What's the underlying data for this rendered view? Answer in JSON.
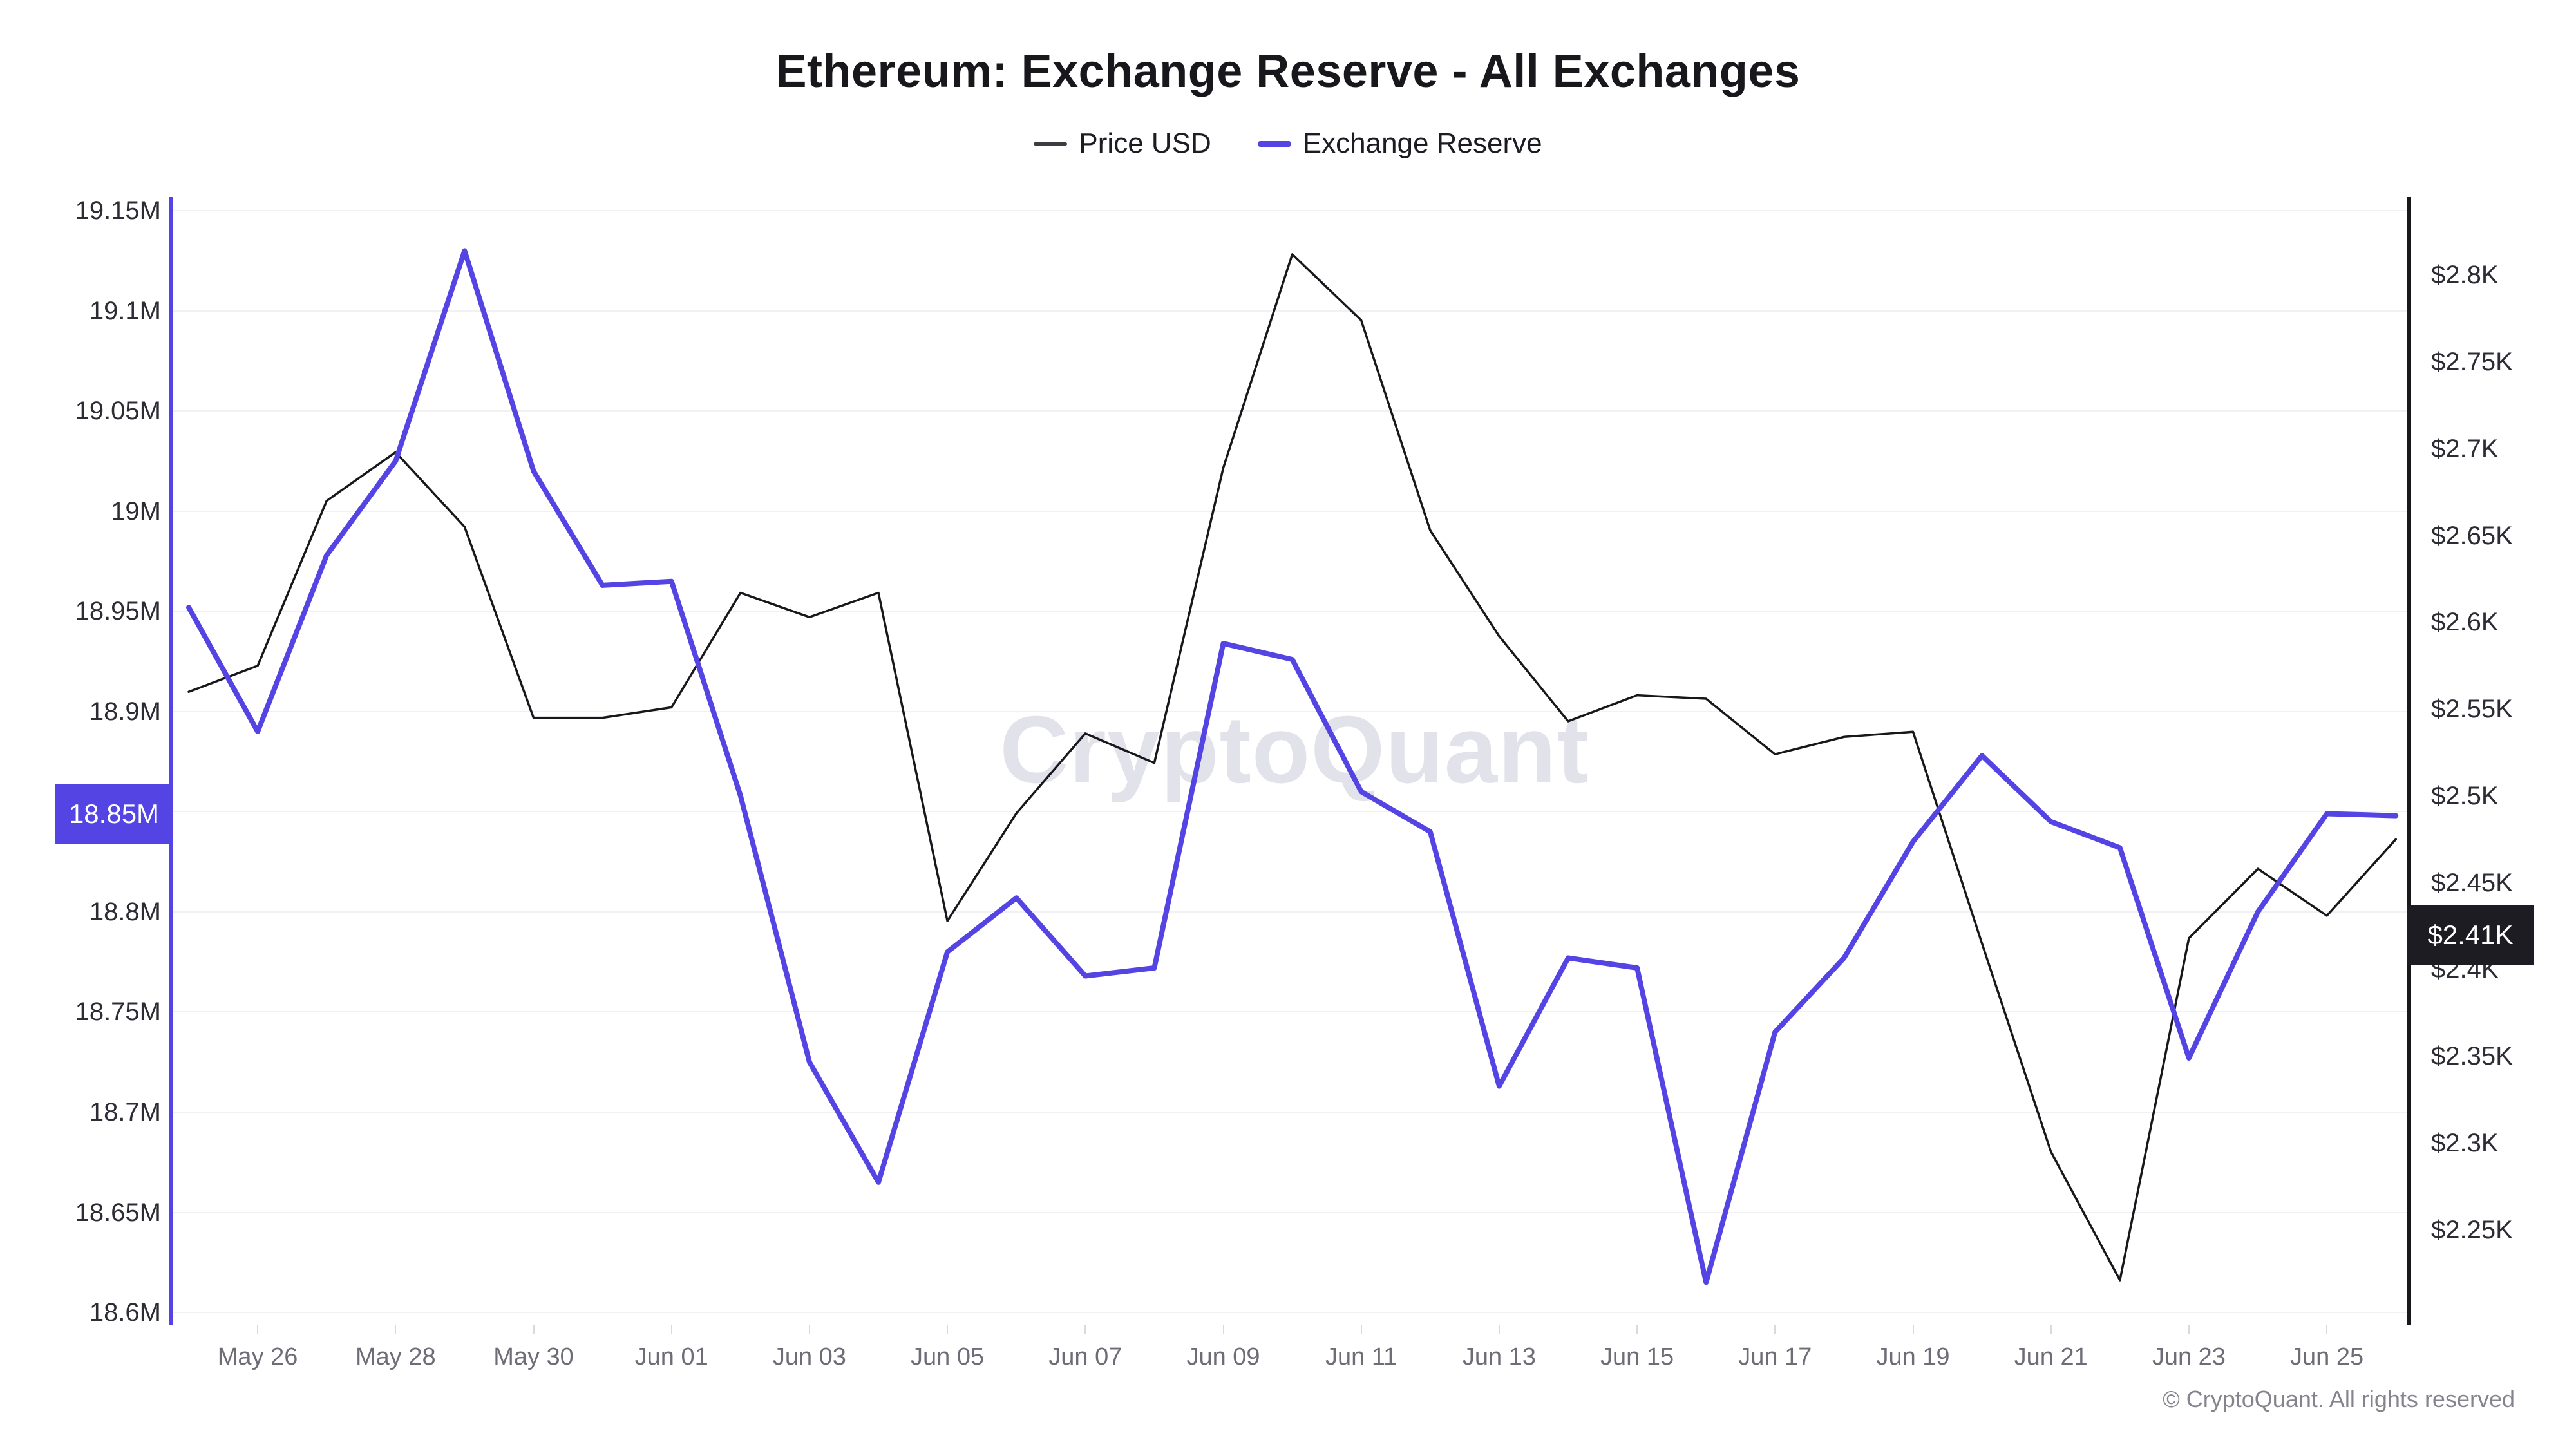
{
  "watermark": {
    "text": "CryptoQuant"
  },
  "footer": {
    "copyright": "© CryptoQuant. All rights reserved"
  },
  "chart_data": {
    "type": "line",
    "title": "Ethereum: Exchange Reserve - All Exchanges",
    "legend_position": "top",
    "grid": true,
    "x": [
      "May 25",
      "May 26",
      "May 27",
      "May 28",
      "May 29",
      "May 30",
      "May 31",
      "Jun 01",
      "Jun 02",
      "Jun 03",
      "Jun 04",
      "Jun 05",
      "Jun 06",
      "Jun 07",
      "Jun 08",
      "Jun 09",
      "Jun 10",
      "Jun 11",
      "Jun 12",
      "Jun 13",
      "Jun 14",
      "Jun 15",
      "Jun 16",
      "Jun 17",
      "Jun 18",
      "Jun 19",
      "Jun 20",
      "Jun 21",
      "Jun 22",
      "Jun 23",
      "Jun 24",
      "Jun 25",
      "Jun 26"
    ],
    "x_tick_indices": [
      1,
      3,
      5,
      7,
      9,
      11,
      13,
      15,
      17,
      19,
      21,
      23,
      25,
      27,
      29,
      31
    ],
    "x_tick_labels": [
      "May 26",
      "May 28",
      "May 30",
      "Jun 01",
      "Jun 03",
      "Jun 05",
      "Jun 07",
      "Jun 09",
      "Jun 11",
      "Jun 13",
      "Jun 15",
      "Jun 17",
      "Jun 19",
      "Jun 21",
      "Jun 23",
      "Jun 25"
    ],
    "series": [
      {
        "name": "Price USD",
        "axis": "right",
        "color": "#17171c",
        "stroke_width": 3.5,
        "unit": "K USD",
        "values": [
          2.56,
          2.575,
          2.67,
          2.698,
          2.655,
          2.545,
          2.545,
          2.551,
          2.617,
          2.603,
          2.617,
          2.428,
          2.49,
          2.536,
          2.519,
          2.689,
          2.812,
          2.774,
          2.653,
          2.592,
          2.543,
          2.558,
          2.556,
          2.524,
          2.534,
          2.537,
          2.415,
          2.295,
          2.221,
          2.418,
          2.458,
          2.431,
          2.475
        ]
      },
      {
        "name": "Exchange Reserve",
        "axis": "left",
        "color": "#5444e4",
        "stroke_width": 8,
        "unit": "M ETH",
        "values": [
          18.952,
          18.89,
          18.978,
          19.025,
          19.13,
          19.02,
          18.963,
          18.965,
          18.858,
          18.725,
          18.665,
          18.78,
          18.807,
          18.768,
          18.772,
          18.934,
          18.926,
          18.86,
          18.84,
          18.713,
          18.777,
          18.772,
          18.615,
          18.74,
          18.777,
          18.835,
          18.878,
          18.845,
          18.832,
          18.727,
          18.8,
          18.849,
          18.848
        ]
      }
    ],
    "left_axis": {
      "label": "Exchange Reserve",
      "min": 18.5936,
      "max": 19.1568,
      "tick_values": [
        19.15,
        19.1,
        19.05,
        19.0,
        18.95,
        18.9,
        18.85,
        18.8,
        18.75,
        18.7,
        18.65,
        18.6
      ],
      "tick_labels": [
        "19.15M",
        "19.1M",
        "19.05M",
        "19M",
        "18.95M",
        "18.9M",
        "18.85M",
        "18.8M",
        "18.75M",
        "18.7M",
        "18.65M",
        "18.6M"
      ]
    },
    "right_axis": {
      "label": "Price USD",
      "min": 2.195,
      "max": 2.845,
      "tick_values": [
        2.8,
        2.75,
        2.7,
        2.65,
        2.6,
        2.55,
        2.5,
        2.45,
        2.4,
        2.35,
        2.3,
        2.25
      ],
      "tick_labels": [
        "$2.8K",
        "$2.75K",
        "$2.7K",
        "$2.65K",
        "$2.6K",
        "$2.55K",
        "$2.5K",
        "$2.45K",
        "$2.4K",
        "$2.35K",
        "$2.3K",
        "$2.25K"
      ]
    },
    "badges": {
      "left": {
        "label": "18.85M",
        "anchor_value": 18.849
      },
      "right": {
        "label": "$2.41K",
        "anchor_value": 2.42
      }
    }
  }
}
